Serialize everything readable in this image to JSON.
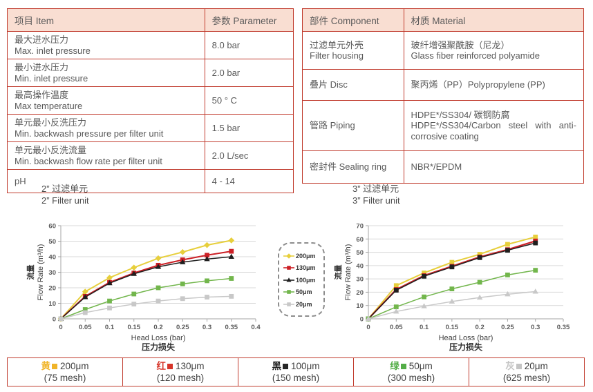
{
  "page": {
    "background": "#ffffff",
    "table_border_color": "#c0392b",
    "table_header_fill": "#f9ded2"
  },
  "spec_table": {
    "headers": [
      "项目 Item",
      "参数 Parameter"
    ],
    "rows": [
      {
        "item": [
          "最大进水压力",
          "Max. inlet pressure"
        ],
        "value": "8.0 bar"
      },
      {
        "item": [
          "最小进水压力",
          "Min. inlet pressure"
        ],
        "value": "2.0 bar"
      },
      {
        "item": [
          "最高操作温度",
          "Max temperature"
        ],
        "value": "50 ° C"
      },
      {
        "item": [
          "单元最小反洗压力",
          "Min. backwash pressure per filter unit"
        ],
        "value": "1.5 bar"
      },
      {
        "item": [
          "单元最小反洗流量",
          "Min. backwash flow rate per filter unit"
        ],
        "value": "2.0 L/sec"
      },
      {
        "item": [
          "pH"
        ],
        "value": "4 - 14"
      }
    ]
  },
  "material_table": {
    "headers": [
      "部件 Component",
      "材质 Material"
    ],
    "rows": [
      {
        "component": [
          "过滤单元外壳",
          "Filter housing"
        ],
        "material": [
          "玻纤增强聚酰胺（尼龙）",
          "Glass fiber reinforced polyamide"
        ]
      },
      {
        "component": [
          "叠片 Disc"
        ],
        "material": [
          "聚丙烯（PP）Polypropylene (PP)"
        ]
      },
      {
        "component": [
          "管路 Piping"
        ],
        "material": [
          "HDPE*/SS304/ 碳钢防腐",
          "HDPE*/SS304/Carbon steel with anti-corrosive coating"
        ]
      },
      {
        "component": [
          "密封件 Sealing ring"
        ],
        "material": [
          "NBR*/EPDM"
        ]
      }
    ]
  },
  "chart_data": [
    {
      "type": "line",
      "title_cn": "2” 过滤单元",
      "title_en": "2” Filter unit",
      "xlabel_en": "Head Loss (bar)",
      "xlabel_cn": "压力损失",
      "ylabel_cn": "流量",
      "ylabel_en": "Flow Rate (m³/h)",
      "xlim": [
        0,
        0.4
      ],
      "ylim": [
        0,
        60
      ],
      "ytick_step": 10,
      "xticks": [
        0,
        0.05,
        0.1,
        0.15,
        0.2,
        0.25,
        0.3,
        0.35,
        0.4
      ],
      "grid": true,
      "x": [
        0,
        0.05,
        0.1,
        0.15,
        0.2,
        0.25,
        0.3,
        0.35
      ],
      "series": [
        {
          "name": "200μm",
          "color": "#e7cf3c",
          "marker": "diamond",
          "width": 2,
          "values": [
            0,
            17.5,
            26.5,
            33,
            39,
            43,
            47.5,
            50.5
          ]
        },
        {
          "name": "130μm",
          "color": "#cc2026",
          "marker": "square",
          "width": 2,
          "values": [
            0,
            14.5,
            23.5,
            29.5,
            34.5,
            38,
            41,
            43.5
          ]
        },
        {
          "name": "100μm",
          "color": "#1f1f1f",
          "marker": "triangle",
          "width": 1.5,
          "values": [
            0,
            14,
            23,
            29,
            33.5,
            36.5,
            38.5,
            40
          ]
        },
        {
          "name": "50μm",
          "color": "#72b64c",
          "marker": "square",
          "width": 1.5,
          "values": [
            0,
            6,
            11.5,
            16,
            20,
            22.5,
            24.5,
            26
          ]
        },
        {
          "name": "20μm",
          "color": "#c8c8c8",
          "marker": "square",
          "width": 1.5,
          "values": [
            0,
            4,
            7,
            9.5,
            11.5,
            13,
            14,
            14.5
          ]
        }
      ]
    },
    {
      "type": "line",
      "title_cn": "3” 过滤单元",
      "title_en": "3” Filter unit",
      "xlabel_en": "Head Loss (bar)",
      "xlabel_cn": "压力损失",
      "ylabel_cn": "流量",
      "ylabel_en": "Flow Rate (m³/h)",
      "xlim": [
        0,
        0.35
      ],
      "ylim": [
        0,
        70
      ],
      "ytick_step": 10,
      "xticks": [
        0,
        0.05,
        0.1,
        0.15,
        0.2,
        0.25,
        0.3,
        0.35
      ],
      "grid": true,
      "x": [
        0,
        0.05,
        0.1,
        0.15,
        0.2,
        0.25,
        0.3
      ],
      "series": [
        {
          "name": "200μm",
          "color": "#e7cf3c",
          "marker": "square",
          "width": 2,
          "values": [
            0,
            25,
            34.5,
            42.5,
            48.5,
            56,
            61.5
          ]
        },
        {
          "name": "130μm",
          "color": "#cc2026",
          "marker": "square",
          "width": 2.2,
          "values": [
            0,
            22,
            32.5,
            39.5,
            46.5,
            52,
            58.5
          ]
        },
        {
          "name": "100μm",
          "color": "#1f1f1f",
          "marker": "square",
          "width": 1.5,
          "values": [
            0,
            21.5,
            32,
            39,
            46,
            51.5,
            57
          ]
        },
        {
          "name": "50μm",
          "color": "#72b64c",
          "marker": "square",
          "width": 1.5,
          "values": [
            0,
            9,
            16.5,
            22.5,
            27.5,
            33,
            36.5
          ]
        },
        {
          "name": "20μm",
          "color": "#c8c8c8",
          "marker": "triangle",
          "width": 1.5,
          "values": [
            0,
            5.5,
            9.5,
            13,
            16,
            18.5,
            20.5
          ]
        }
      ]
    }
  ],
  "chart_legend": {
    "items": [
      {
        "label": "200μm",
        "color": "#e7cf3c",
        "marker": "diamond"
      },
      {
        "label": "130μm",
        "color": "#cc2026",
        "marker": "square"
      },
      {
        "label": "100μm",
        "color": "#1f1f1f",
        "marker": "triangle"
      },
      {
        "label": "50μm",
        "color": "#72b64c",
        "marker": "square"
      },
      {
        "label": "20μm",
        "color": "#c8c8c8",
        "marker": "square"
      }
    ]
  },
  "mesh_legend": {
    "cells": [
      {
        "color_name": "黄",
        "color": "#f0b428",
        "size": "200μm",
        "mesh": "(75 mesh)"
      },
      {
        "color_name": "红",
        "color": "#d63429",
        "size": "130μm",
        "mesh": "(120 mesh)"
      },
      {
        "color_name": "黑",
        "color": "#262626",
        "size": "100μm",
        "mesh": "(150 mesh)"
      },
      {
        "color_name": "绿",
        "color": "#53ad47",
        "size": "50μm",
        "mesh": "(300 mesh)"
      },
      {
        "color_name": "灰",
        "color": "#c4c4c4",
        "size": "20μm",
        "mesh": "(625 mesh)"
      }
    ]
  }
}
